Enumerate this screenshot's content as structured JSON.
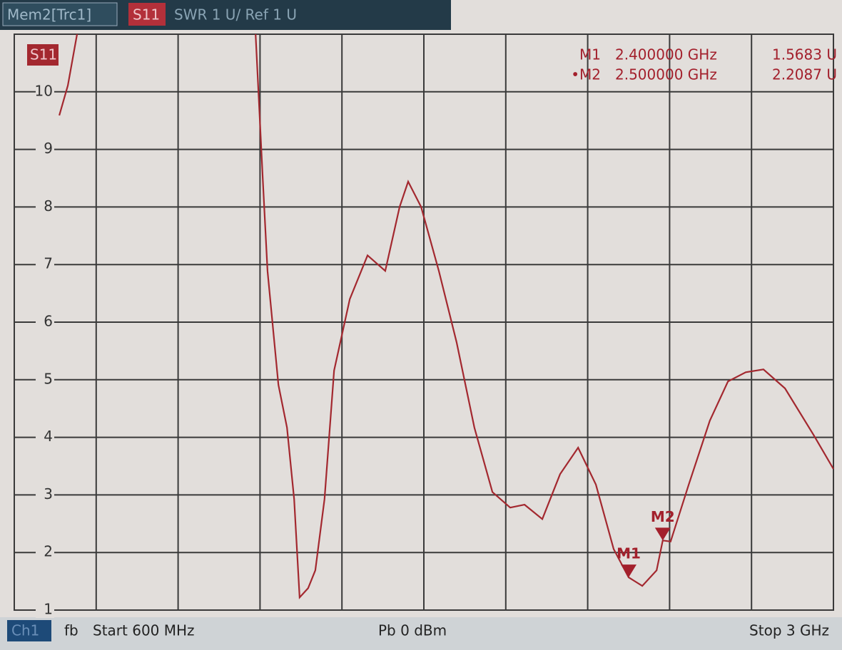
{
  "chart_data": {
    "type": "line",
    "header": {
      "memory": "Mem2[Trc1]",
      "format": "SWR  1 U/  Ref 1 U"
    },
    "footer": {
      "channel": "Ch1",
      "mode": "fb",
      "start": "Start 600 MHz",
      "power": "Pb  0 dBm",
      "stop": "Stop 3 GHz"
    },
    "x": [
      732,
      757,
      784,
      null,
      1307,
      1328,
      1342,
      1374,
      1399,
      1420,
      1436,
      1461,
      1482,
      1509,
      1537,
      1583,
      1635,
      1687,
      1729,
      1754,
      1792,
      1844,
      1896,
      1948,
      2001,
      2053,
      2095,
      2147,
      2199,
      2252,
      2304,
      2356,
      2400,
      2440,
      2482,
      2500,
      2523,
      2576,
      2638,
      2691,
      2743,
      2795,
      2858,
      2942,
      3000
    ],
    "series": [
      {
        "name": "S11",
        "color": "#a3282f",
        "values": [
          9.59,
          10.11,
          11,
          null,
          11,
          8.5,
          6.89,
          4.91,
          4.17,
          2.93,
          1.22,
          1.38,
          1.69,
          2.93,
          5.16,
          6.4,
          7.16,
          6.89,
          8.0,
          8.44,
          8.0,
          6.89,
          5.65,
          4.17,
          3.05,
          2.78,
          2.83,
          2.58,
          3.36,
          3.82,
          3.18,
          2.06,
          1.5683,
          1.42,
          1.69,
          2.2087,
          2.19,
          3.18,
          4.29,
          4.97,
          5.13,
          5.18,
          4.85,
          4.04,
          3.45
        ]
      }
    ],
    "xlim": [
      600,
      3000
    ],
    "ylim": [
      1,
      11
    ],
    "yticks": [
      1,
      2,
      3,
      4,
      5,
      6,
      7,
      8,
      9,
      10
    ],
    "grid": true,
    "markers": [
      {
        "name": "M1",
        "readout_name": "M1",
        "freq": "2.400000 GHz",
        "x": 2400,
        "value": 1.5683,
        "value_label": "1.5683 U"
      },
      {
        "name": "M2",
        "readout_name": "•M2",
        "freq": "2.500000 GHz",
        "x": 2500,
        "value": 2.2087,
        "value_label": "2.2087 U"
      }
    ]
  }
}
